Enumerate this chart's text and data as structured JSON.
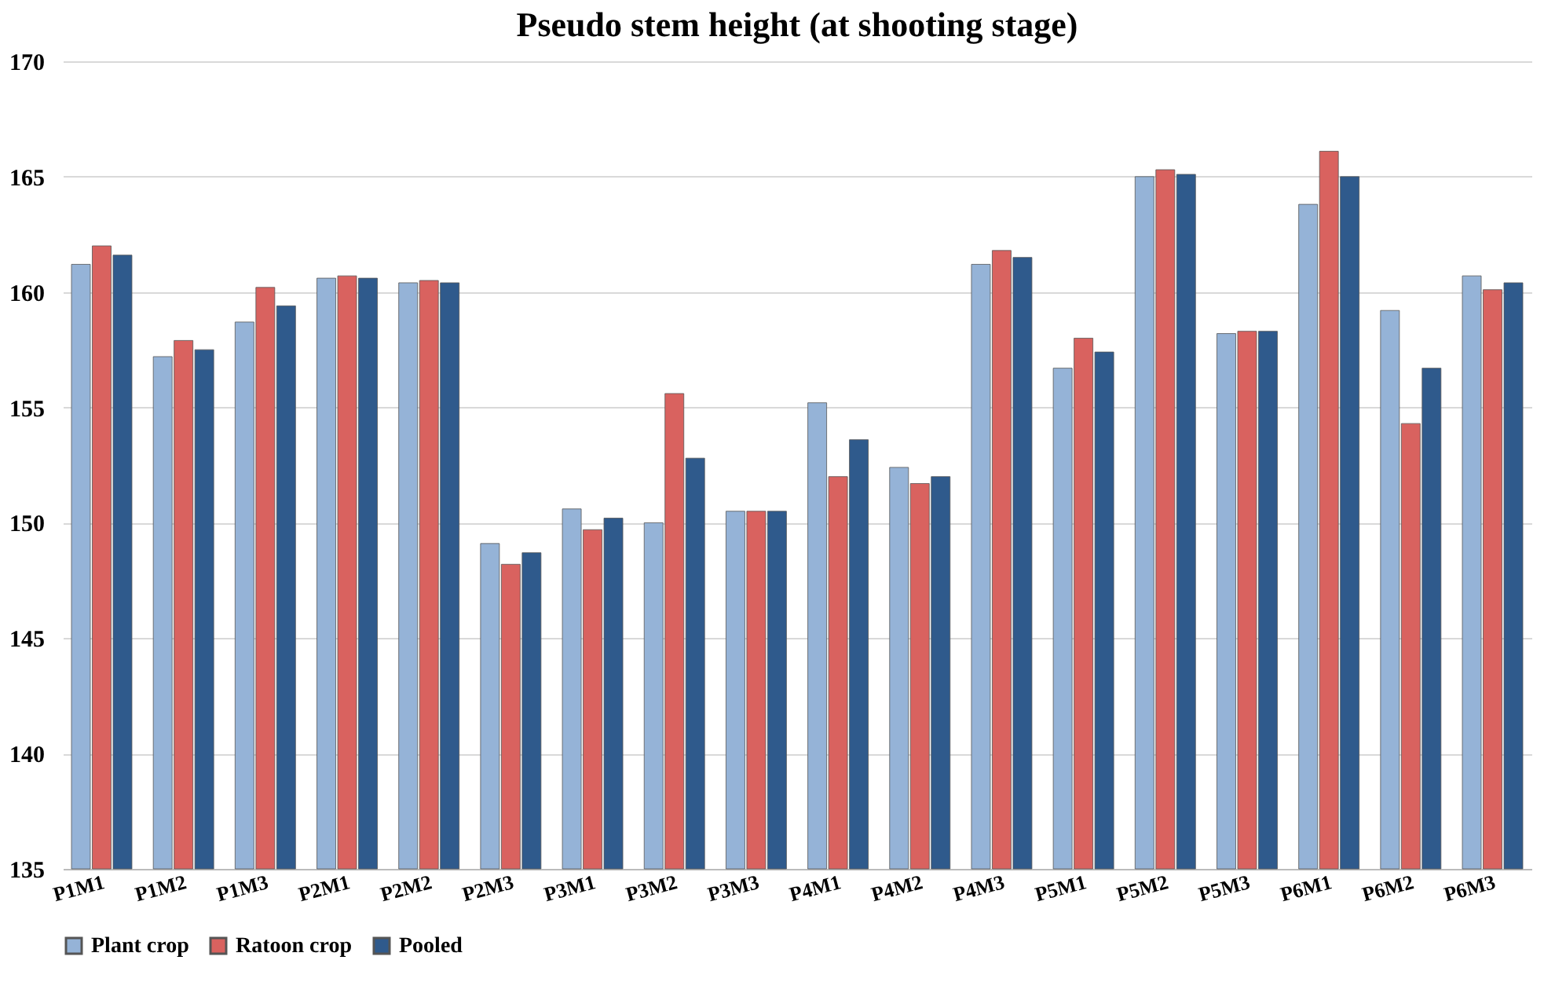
{
  "chart_data": {
    "type": "bar",
    "title": "Pseudo stem height (at shooting stage)",
    "categories": [
      "P1M1",
      "P1M2",
      "P1M3",
      "P2M1",
      "P2M2",
      "P2M3",
      "P3M1",
      "P3M2",
      "P3M3",
      "P4M1",
      "P4M2",
      "P4M3",
      "P5M1",
      "P5M2",
      "P5M3",
      "P6M1",
      "P6M2",
      "P6M3"
    ],
    "series": [
      {
        "name": "Plant crop",
        "color": "#95b3d7",
        "values": [
          161.2,
          157.2,
          158.7,
          160.6,
          160.4,
          149.1,
          150.6,
          150.0,
          150.5,
          155.2,
          152.4,
          161.2,
          156.7,
          165.0,
          158.2,
          163.8,
          159.2,
          160.7
        ]
      },
      {
        "name": "Ratoon crop",
        "color": "#d9625f",
        "values": [
          162.0,
          157.9,
          160.2,
          160.7,
          160.5,
          148.2,
          149.7,
          155.6,
          150.5,
          152.0,
          151.7,
          161.8,
          158.0,
          165.3,
          158.3,
          166.1,
          154.3,
          160.1
        ]
      },
      {
        "name": "Pooled",
        "color": "#2f5a8c",
        "values": [
          161.6,
          157.5,
          159.4,
          160.6,
          160.4,
          148.7,
          150.2,
          152.8,
          150.5,
          153.6,
          152.0,
          161.5,
          157.4,
          165.1,
          158.3,
          165.0,
          156.7,
          160.4
        ]
      }
    ],
    "ylim": [
      135,
      170
    ],
    "yticks": [
      135,
      140,
      145,
      150,
      155,
      160,
      165,
      170
    ],
    "grid": "y",
    "legend": "bottom"
  }
}
